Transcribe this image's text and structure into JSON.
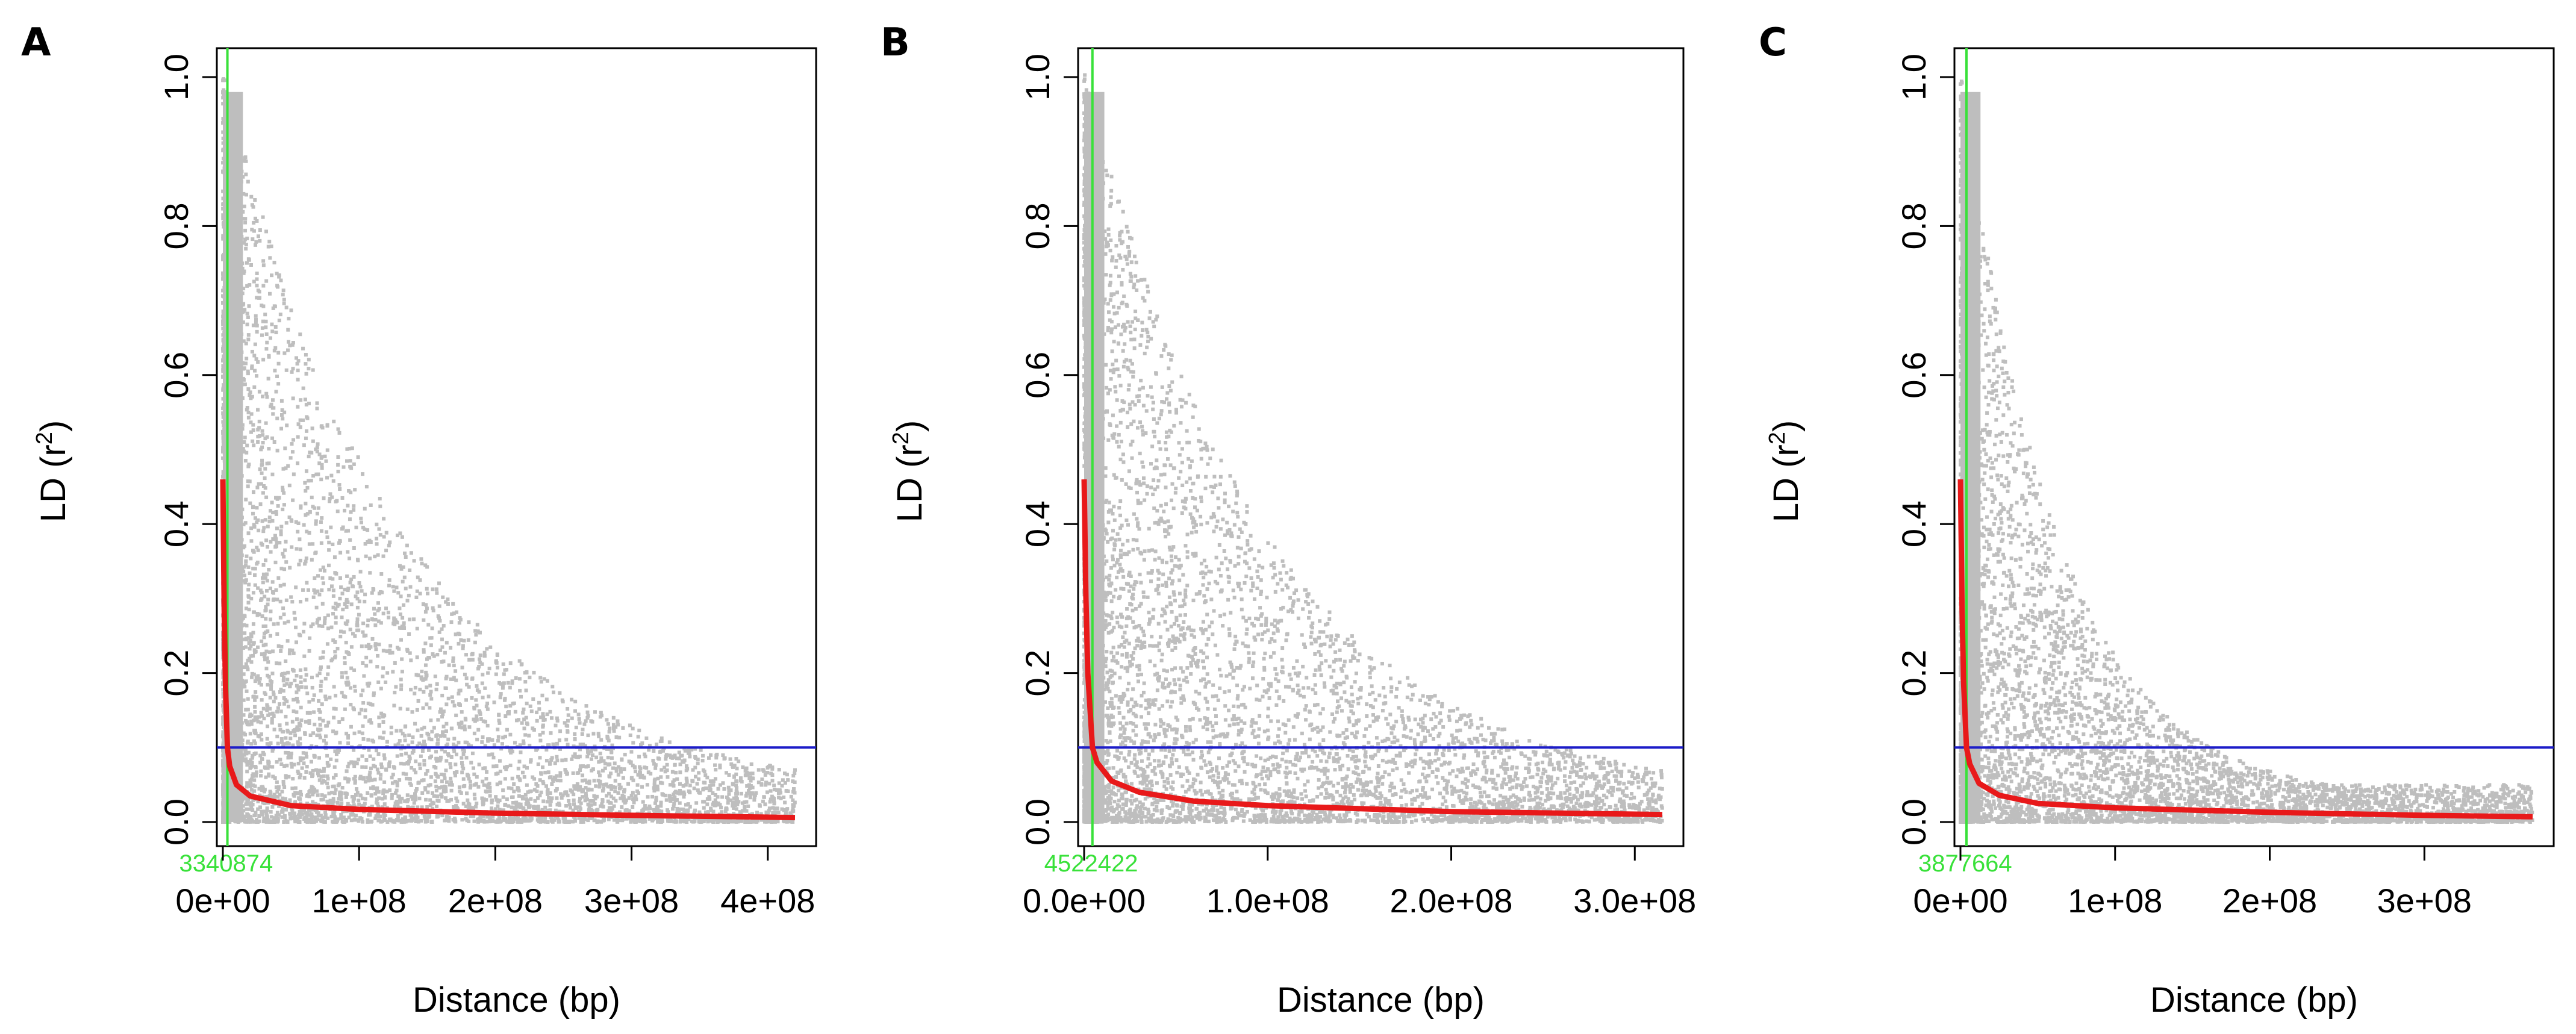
{
  "colors": {
    "points": "#bebebe",
    "fit": "#e8191a",
    "threshold": "#1c1cc8",
    "marker": "#39e13a",
    "axis": "#000000"
  },
  "chart_data": [
    {
      "panel": "A",
      "type": "scatter",
      "xlabel": "Distance (bp)",
      "ylabel": "LD (r2)",
      "xlim": [
        0,
        420000000
      ],
      "ylim": [
        0,
        1.0
      ],
      "x_ticks": [
        0,
        100000000,
        200000000,
        300000000,
        400000000
      ],
      "x_tick_labels": [
        "0e+00",
        "1e+08",
        "2e+08",
        "3e+08",
        "4e+08"
      ],
      "y_ticks": [
        0.0,
        0.2,
        0.4,
        0.6,
        0.8,
        1.0
      ],
      "y_tick_labels": [
        "0.0",
        "0.2",
        "0.4",
        "0.6",
        "0.8",
        "1.0"
      ],
      "threshold_r2": 0.1,
      "decay_distance_bp": 3340874,
      "decay_label": "3340874",
      "fit_curve": {
        "x": [
          0,
          1000000,
          2000000,
          3340874,
          5000000,
          10000000,
          20000000,
          50000000,
          100000000,
          200000000,
          300000000,
          420000000
        ],
        "y": [
          0.46,
          0.28,
          0.18,
          0.1,
          0.075,
          0.05,
          0.035,
          0.022,
          0.017,
          0.012,
          0.009,
          0.006
        ]
      },
      "point_cloud": {
        "max_distance_bp": 420000000,
        "points_over_distance": "dense near 0, sparse beyond 3e+08"
      }
    },
    {
      "panel": "B",
      "type": "scatter",
      "xlabel": "Distance (bp)",
      "ylabel": "LD (r2)",
      "xlim": [
        0,
        315000000
      ],
      "ylim": [
        0,
        1.0
      ],
      "x_ticks": [
        0,
        100000000,
        200000000,
        300000000
      ],
      "x_tick_labels": [
        "0.0e+00",
        "1.0e+08",
        "2.0e+08",
        "3.0e+08"
      ],
      "y_ticks": [
        0.0,
        0.2,
        0.4,
        0.6,
        0.8,
        1.0
      ],
      "y_tick_labels": [
        "0.0",
        "0.2",
        "0.4",
        "0.6",
        "0.8",
        "1.0"
      ],
      "threshold_r2": 0.1,
      "decay_distance_bp": 4522422,
      "decay_label": "4522422",
      "fit_curve": {
        "x": [
          0,
          1000000,
          2000000,
          4522422,
          7000000,
          15000000,
          30000000,
          60000000,
          100000000,
          200000000,
          315000000
        ],
        "y": [
          0.46,
          0.3,
          0.2,
          0.1,
          0.08,
          0.055,
          0.04,
          0.028,
          0.022,
          0.014,
          0.01
        ]
      },
      "point_cloud": {
        "max_distance_bp": 315000000,
        "points_over_distance": "dense near 0, sparse beyond 2e+08"
      }
    },
    {
      "panel": "C",
      "type": "scatter",
      "xlabel": "Distance (bp)",
      "ylabel": "LD (r2)",
      "xlim": [
        0,
        370000000
      ],
      "ylim": [
        0,
        1.0
      ],
      "x_ticks": [
        0,
        100000000,
        200000000,
        300000000
      ],
      "x_tick_labels": [
        "0e+00",
        "1e+08",
        "2e+08",
        "3e+08"
      ],
      "y_ticks": [
        0.0,
        0.2,
        0.4,
        0.6,
        0.8,
        1.0
      ],
      "y_tick_labels": [
        "0.0",
        "0.2",
        "0.4",
        "0.6",
        "0.8",
        "1.0"
      ],
      "threshold_r2": 0.1,
      "decay_distance_bp": 3877664,
      "decay_label": "3877664",
      "fit_curve": {
        "x": [
          0,
          1000000,
          2000000,
          3877664,
          6000000,
          12000000,
          25000000,
          50000000,
          100000000,
          200000000,
          300000000,
          370000000
        ],
        "y": [
          0.46,
          0.29,
          0.19,
          0.1,
          0.078,
          0.052,
          0.036,
          0.025,
          0.019,
          0.013,
          0.009,
          0.007
        ]
      },
      "point_cloud": {
        "max_distance_bp": 370000000,
        "points_over_distance": "scattered, sparse beyond 1e+08"
      }
    }
  ]
}
